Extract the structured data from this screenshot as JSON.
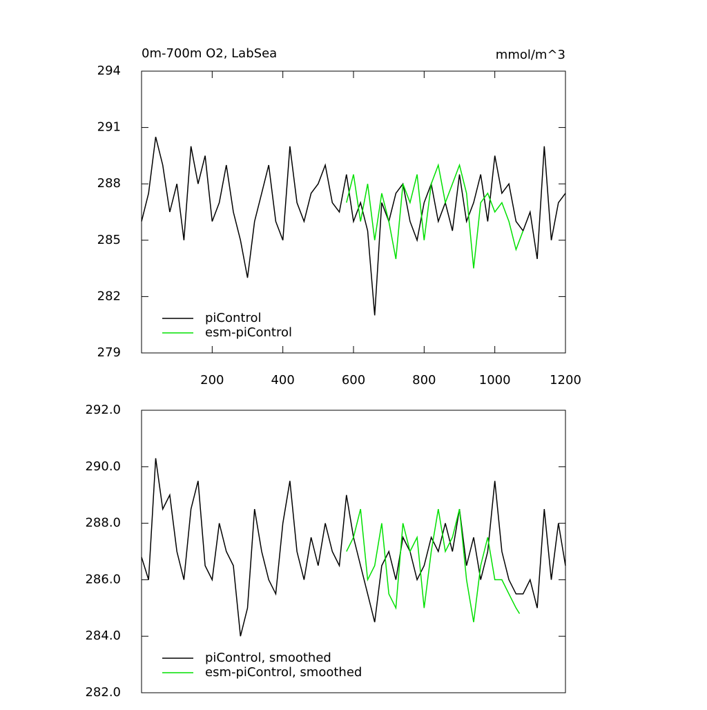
{
  "chart_data": [
    {
      "type": "line",
      "title": "0m-700m O2, LabSea",
      "units": "mmol/m^3",
      "xlim": [
        0,
        1200
      ],
      "xticks": [
        200,
        400,
        600,
        800,
        1000,
        1200
      ],
      "ylim": [
        279,
        294
      ],
      "yticks": [
        279,
        282,
        285,
        288,
        291,
        294
      ],
      "legend": "lower-left",
      "series": [
        {
          "name": "piControl",
          "color": "#000000",
          "x": [
            0,
            20,
            40,
            60,
            80,
            100,
            120,
            140,
            160,
            180,
            200,
            220,
            240,
            260,
            280,
            300,
            320,
            340,
            360,
            380,
            400,
            420,
            440,
            460,
            480,
            500,
            520,
            540,
            560,
            580,
            600,
            620,
            640,
            660,
            680,
            700,
            720,
            740,
            760,
            780,
            800,
            820,
            840,
            860,
            880,
            900,
            920,
            940,
            960,
            980,
            1000,
            1020,
            1040,
            1060,
            1080,
            1100,
            1120,
            1140,
            1160,
            1180,
            1200
          ],
          "values": [
            286,
            287.5,
            290.5,
            289,
            286.5,
            288,
            285,
            290,
            288,
            289.5,
            286,
            287,
            289,
            286.5,
            285,
            283,
            286,
            287.5,
            289,
            286,
            285,
            290,
            287,
            286,
            287.5,
            288,
            289,
            287,
            286.5,
            288.5,
            286,
            287,
            285.5,
            281,
            287,
            286,
            287.5,
            288,
            286,
            285,
            287,
            288,
            286,
            287,
            285.5,
            288.5,
            286,
            287,
            288.5,
            286,
            289.5,
            287.5,
            288,
            286,
            285.5,
            286.5,
            284,
            290,
            285,
            287,
            287.5
          ]
        },
        {
          "name": "esm-piControl",
          "color": "#00e000",
          "x": [
            580,
            600,
            620,
            640,
            660,
            680,
            700,
            720,
            740,
            760,
            780,
            800,
            820,
            840,
            860,
            880,
            900,
            920,
            940,
            960,
            980,
            1000,
            1020,
            1040,
            1060,
            1080
          ],
          "values": [
            287,
            288.5,
            286,
            288,
            285,
            287.5,
            286,
            284,
            288,
            287,
            288.5,
            285,
            288,
            289,
            287,
            288,
            289,
            287.5,
            283.5,
            287,
            287.5,
            286.5,
            287,
            286,
            284.5,
            285.5
          ]
        }
      ]
    },
    {
      "type": "line",
      "xlim": [
        0,
        1200
      ],
      "ylim": [
        282,
        292
      ],
      "yticks": [
        {
          "value": 282,
          "label": "282.0"
        },
        {
          "value": 284,
          "label": "284.0"
        },
        {
          "value": 286,
          "label": "286.0"
        },
        {
          "value": 288,
          "label": "288.0"
        },
        {
          "value": 290,
          "label": "290.0"
        },
        {
          "value": 292,
          "label": "292.0"
        }
      ],
      "legend": "lower-left",
      "series": [
        {
          "name": "piControl, smoothed",
          "color": "#000000",
          "x": [
            0,
            20,
            40,
            60,
            80,
            100,
            120,
            140,
            160,
            180,
            200,
            220,
            240,
            260,
            280,
            300,
            320,
            340,
            360,
            380,
            400,
            420,
            440,
            460,
            480,
            500,
            520,
            540,
            560,
            580,
            600,
            620,
            640,
            660,
            680,
            700,
            720,
            740,
            760,
            780,
            800,
            820,
            840,
            860,
            880,
            900,
            920,
            940,
            960,
            980,
            1000,
            1020,
            1040,
            1060,
            1080,
            1100,
            1120,
            1140,
            1160,
            1180,
            1200
          ],
          "values": [
            286.8,
            286,
            290.3,
            288.5,
            289,
            287,
            286,
            288.5,
            289.5,
            286.5,
            286,
            288,
            287,
            286.5,
            284,
            285,
            288.5,
            287,
            286,
            285.5,
            288,
            289.5,
            287,
            286,
            287.5,
            286.5,
            288,
            287,
            286.5,
            289,
            287.5,
            286.5,
            285.5,
            284.5,
            286.5,
            287,
            286,
            287.5,
            287,
            286,
            286.5,
            287.5,
            287,
            288,
            287,
            288.5,
            286.5,
            287.5,
            286,
            287,
            289.5,
            287,
            286,
            285.5,
            285.5,
            286,
            285,
            288.5,
            286,
            288,
            286.5
          ]
        },
        {
          "name": "esm-piControl, smoothed",
          "color": "#00e000",
          "x": [
            580,
            600,
            620,
            640,
            660,
            680,
            700,
            720,
            740,
            760,
            780,
            800,
            820,
            840,
            860,
            880,
            900,
            920,
            940,
            960,
            980,
            1000,
            1020,
            1040,
            1060,
            1070
          ],
          "values": [
            287,
            287.5,
            288.5,
            286,
            286.5,
            288,
            285.5,
            285,
            288,
            287,
            287.5,
            285,
            287,
            288.5,
            287,
            287.5,
            288.5,
            286,
            284.5,
            286.5,
            287.5,
            286,
            286,
            285.5,
            285,
            284.8
          ]
        }
      ]
    }
  ]
}
